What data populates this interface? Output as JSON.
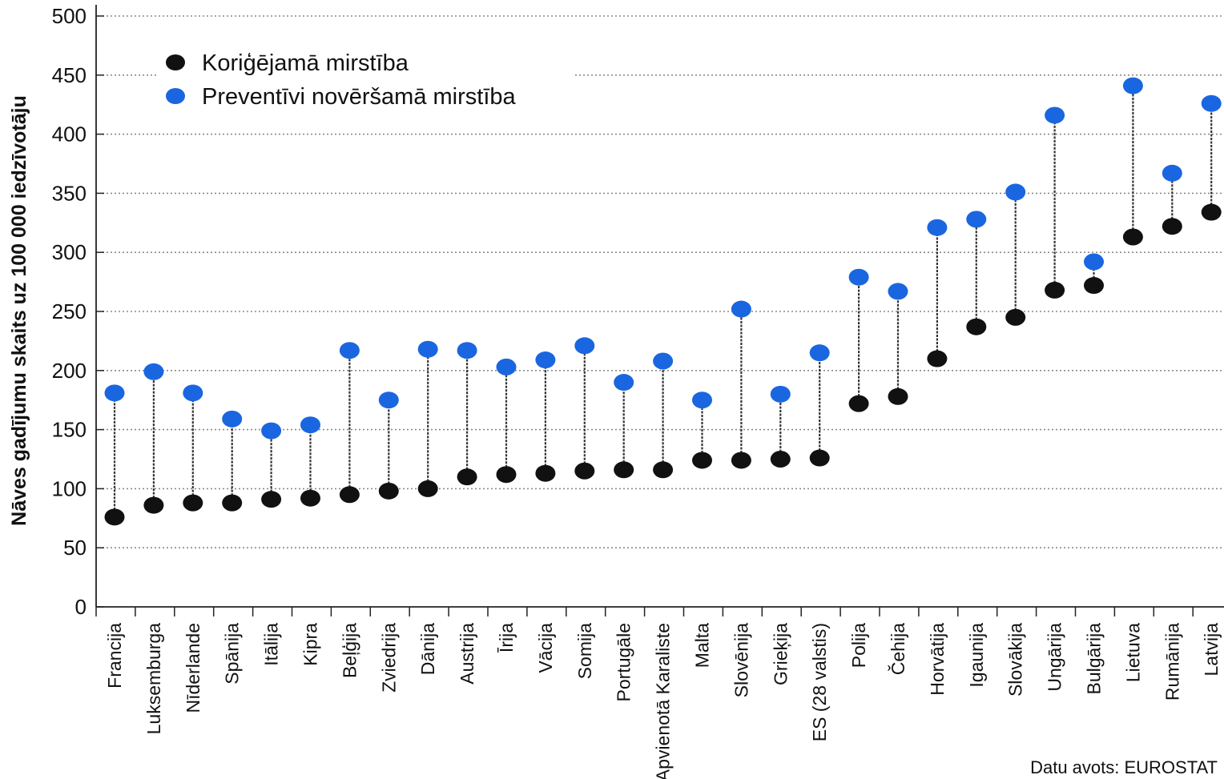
{
  "chart_data": {
    "type": "dot-range",
    "ylabel": "Nāves gadījumu skaits uz 100 000 iedzīvotāju",
    "ylim": [
      0,
      500
    ],
    "yticks": [
      0,
      50,
      100,
      150,
      200,
      250,
      300,
      350,
      400,
      450,
      500
    ],
    "grid": true,
    "legend_position": "top-left",
    "categories": [
      "Francija",
      "Luksemburga",
      "Nīderlande",
      "Spānija",
      "Itālija",
      "Kipra",
      "Beļģija",
      "Zviedrija",
      "Dānija",
      "Austrija",
      "Īrija",
      "Vācija",
      "Somija",
      "Portugāle",
      "Apvienotā Karaliste",
      "Malta",
      "Slovēnija",
      "Grieķija",
      "ES (28 valstis)",
      "Polija",
      "Čehija",
      "Horvātija",
      "Igaunija",
      "Slovākija",
      "Ungārija",
      "Bulgārija",
      "Lietuva",
      "Rumānija",
      "Latvija"
    ],
    "series": [
      {
        "name": "Koriģējamā mirstība",
        "color": "#111111",
        "values": [
          76,
          86,
          88,
          88,
          91,
          92,
          95,
          98,
          100,
          110,
          112,
          113,
          115,
          116,
          116,
          124,
          124,
          125,
          126,
          172,
          178,
          210,
          237,
          245,
          268,
          272,
          313,
          322,
          334
        ]
      },
      {
        "name": "Preventīvi novēršamā mirstība",
        "color": "#1a66e0",
        "values": [
          181,
          199,
          181,
          159,
          149,
          154,
          217,
          175,
          218,
          217,
          203,
          209,
          221,
          190,
          208,
          175,
          252,
          180,
          215,
          279,
          267,
          321,
          328,
          351,
          416,
          292,
          441,
          367,
          426
        ]
      }
    ],
    "source": "Datu avots: EUROSTAT"
  }
}
